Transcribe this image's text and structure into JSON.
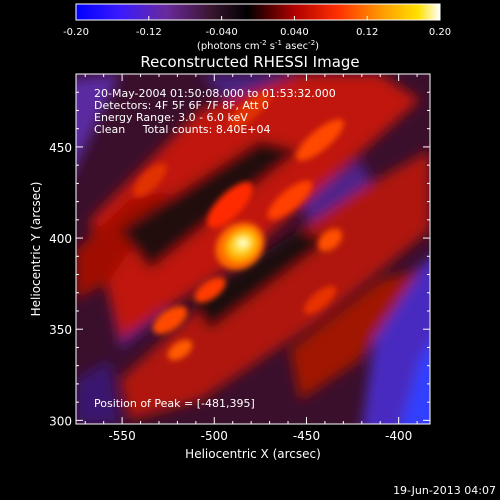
{
  "chart_data": {
    "type": "heatmap",
    "title": "Reconstructed RHESSI Image",
    "xlabel": "Heliocentric X (arcsec)",
    "ylabel": "Heliocentric Y (arcsec)",
    "xlim": [
      -575,
      -383
    ],
    "ylim": [
      298,
      490
    ],
    "xticks": [
      "-550",
      "-500",
      "-450",
      "-400"
    ],
    "yticks": [
      "300",
      "350",
      "400",
      "450"
    ],
    "colorbar": {
      "min": -0.2,
      "max": 0.2,
      "ticks": [
        "-0.20",
        "-0.12",
        "-0.040",
        "0.040",
        "0.12",
        "0.20"
      ],
      "label": "(photons cm",
      "label_exp1": "-2",
      "label_mid": " s",
      "label_exp2": "-1",
      "label_tail": " asec",
      "label_exp3": "-2",
      "label_close": ")"
    },
    "annotations": {
      "time": "20-May-2004 01:50:08.000 to 01:53:32.000",
      "detectors": "Detectors: 4F 5F 6F 7F 8F, Att 0",
      "energy": "Energy Range: 3.0 - 6.0 keV",
      "clean": "Clean     Total counts: 8.40E+04",
      "peak": "Position of Peak = [-481,395]"
    },
    "peak": {
      "x": -481,
      "y": 395
    },
    "footer_date": "19-Jun-2013 04:07",
    "colormap": [
      "#0000ff",
      "#5a1ea0",
      "#1a0a1a",
      "#000000",
      "#8a0000",
      "#e02000",
      "#ff7800",
      "#ffd000",
      "#ffffc8"
    ]
  }
}
